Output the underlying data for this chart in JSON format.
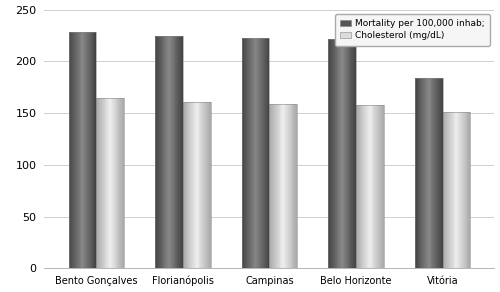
{
  "categories": [
    "Bento Gonçalves",
    "Florianópolis",
    "Campinas",
    "Belo Horizonte",
    "Vitória"
  ],
  "mortality": [
    228,
    224,
    223,
    222,
    184
  ],
  "cholesterol": [
    165,
    161,
    159,
    158,
    151
  ],
  "ylim": [
    0,
    250
  ],
  "yticks": [
    0,
    50,
    100,
    150,
    200,
    250
  ],
  "legend_mortality": "Mortality per 100,000 inhab;",
  "legend_cholesterol": "Cholesterol (mg/dL)",
  "bar_width": 0.32,
  "background_color": "#ffffff",
  "grid_color": "#c8c8c8",
  "mortality_color_dark": "#444444",
  "mortality_color_mid": "#888888",
  "mortality_color_light": "#555555",
  "cholesterol_color_dark": "#aaaaaa",
  "cholesterol_color_mid": "#eeeeee",
  "cholesterol_color_light": "#cccccc"
}
